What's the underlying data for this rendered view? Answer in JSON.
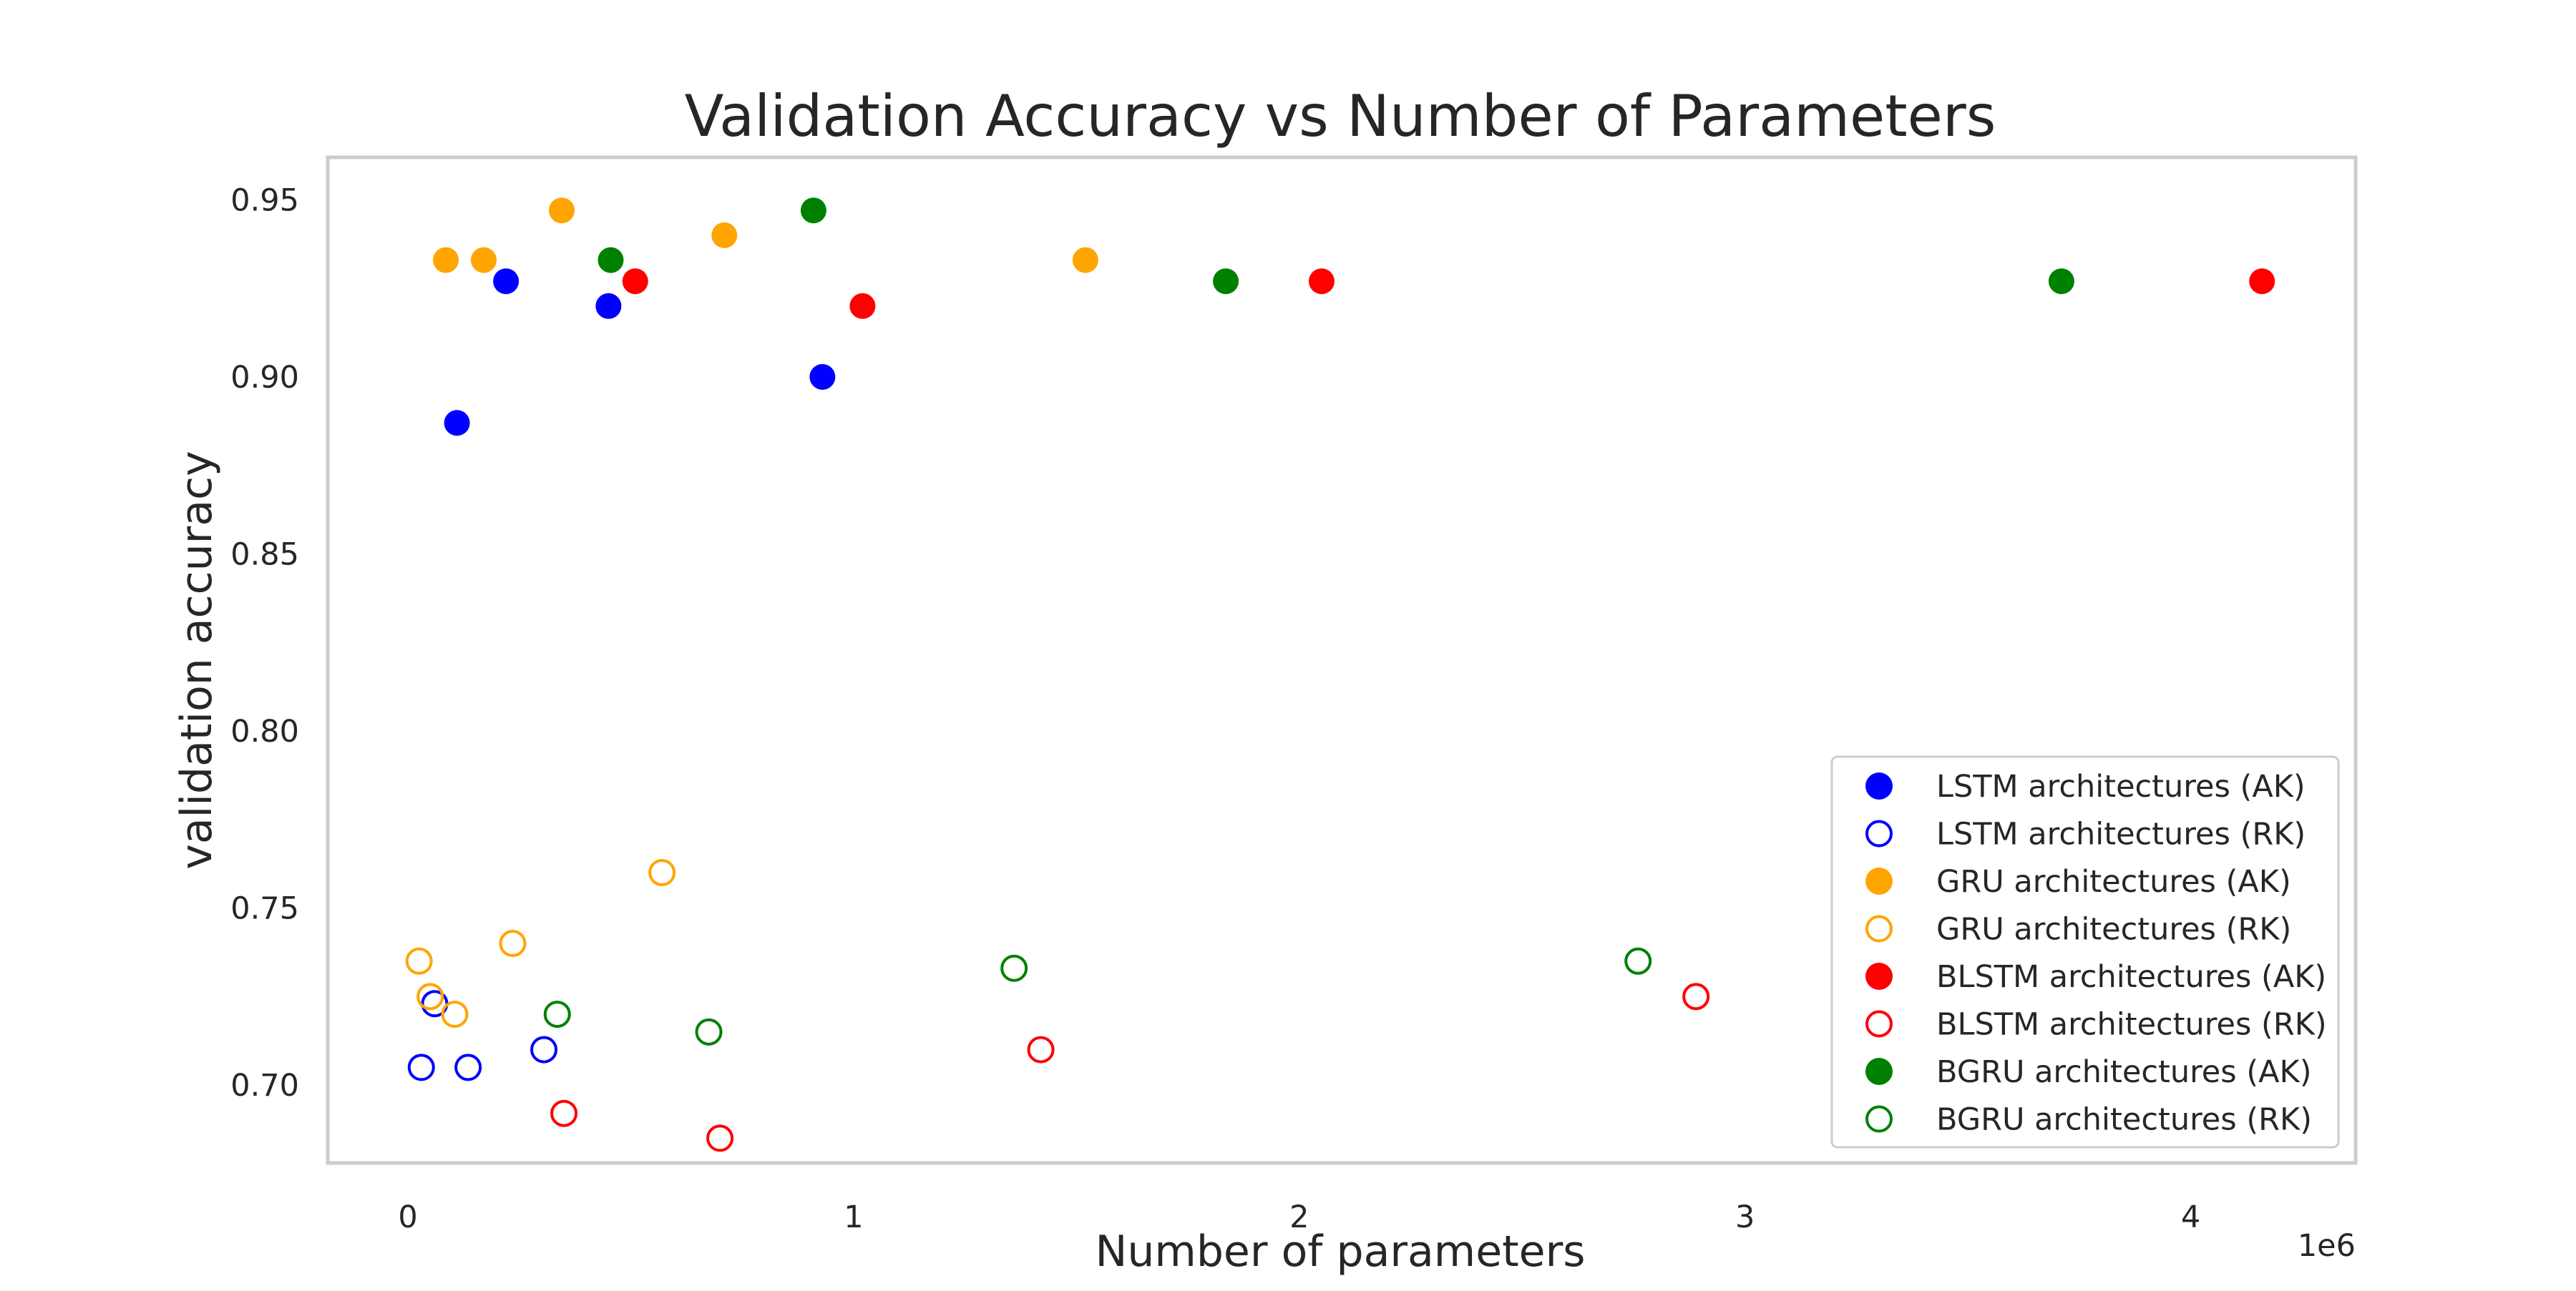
{
  "chart_data": {
    "type": "scatter",
    "title": "Validation Accuracy vs Number of Parameters",
    "xlabel": "Number of parameters",
    "ylabel": "validation accuracy",
    "x_offset_label": "1e6",
    "xlim": [
      -180000,
      4370000
    ],
    "ylim": [
      0.678,
      0.962
    ],
    "x_ticks": [
      0,
      1,
      2,
      3,
      4
    ],
    "x_tick_labels": [
      "0",
      "1",
      "2",
      "3",
      "4"
    ],
    "y_ticks": [
      0.7,
      0.75,
      0.8,
      0.85,
      0.9,
      0.95
    ],
    "y_tick_labels": [
      "0.70",
      "0.75",
      "0.80",
      "0.85",
      "0.90",
      "0.95"
    ],
    "grid": false,
    "legend_position": "lower-right",
    "series": [
      {
        "name": "LSTM architectures (AK)",
        "color": "#0000ff",
        "marker": "filled",
        "points": [
          {
            "x": 110000,
            "y": 0.887
          },
          {
            "x": 220000,
            "y": 0.927
          },
          {
            "x": 450000,
            "y": 0.92
          },
          {
            "x": 930000,
            "y": 0.9
          }
        ]
      },
      {
        "name": "LSTM architectures (RK)",
        "color": "#0000ff",
        "marker": "hollow",
        "points": [
          {
            "x": 30000,
            "y": 0.705
          },
          {
            "x": 60000,
            "y": 0.723
          },
          {
            "x": 135000,
            "y": 0.705
          },
          {
            "x": 305000,
            "y": 0.71
          }
        ]
      },
      {
        "name": "GRU architectures (AK)",
        "color": "#ffa500",
        "marker": "filled",
        "points": [
          {
            "x": 85000,
            "y": 0.933
          },
          {
            "x": 170000,
            "y": 0.933
          },
          {
            "x": 345000,
            "y": 0.947
          },
          {
            "x": 710000,
            "y": 0.94
          },
          {
            "x": 1520000,
            "y": 0.933
          }
        ]
      },
      {
        "name": "GRU architectures (RK)",
        "color": "#ffa500",
        "marker": "hollow",
        "points": [
          {
            "x": 25000,
            "y": 0.735
          },
          {
            "x": 50000,
            "y": 0.725
          },
          {
            "x": 105000,
            "y": 0.72
          },
          {
            "x": 235000,
            "y": 0.74
          },
          {
            "x": 570000,
            "y": 0.76
          }
        ]
      },
      {
        "name": "BLSTM architectures (AK)",
        "color": "#ff0000",
        "marker": "filled",
        "points": [
          {
            "x": 510000,
            "y": 0.927
          },
          {
            "x": 1020000,
            "y": 0.92
          },
          {
            "x": 2050000,
            "y": 0.927
          },
          {
            "x": 4160000,
            "y": 0.927
          }
        ]
      },
      {
        "name": "BLSTM architectures (RK)",
        "color": "#ff0000",
        "marker": "hollow",
        "points": [
          {
            "x": 350000,
            "y": 0.692
          },
          {
            "x": 700000,
            "y": 0.685
          },
          {
            "x": 1420000,
            "y": 0.71
          },
          {
            "x": 2890000,
            "y": 0.725
          }
        ]
      },
      {
        "name": "BGRU architectures (AK)",
        "color": "#008000",
        "marker": "filled",
        "points": [
          {
            "x": 455000,
            "y": 0.933
          },
          {
            "x": 910000,
            "y": 0.947
          },
          {
            "x": 1835000,
            "y": 0.927
          },
          {
            "x": 3710000,
            "y": 0.927
          }
        ]
      },
      {
        "name": "BGRU architectures (RK)",
        "color": "#008000",
        "marker": "hollow",
        "points": [
          {
            "x": 335000,
            "y": 0.72
          },
          {
            "x": 675000,
            "y": 0.715
          },
          {
            "x": 1360000,
            "y": 0.733
          },
          {
            "x": 2760000,
            "y": 0.735
          }
        ]
      }
    ]
  }
}
